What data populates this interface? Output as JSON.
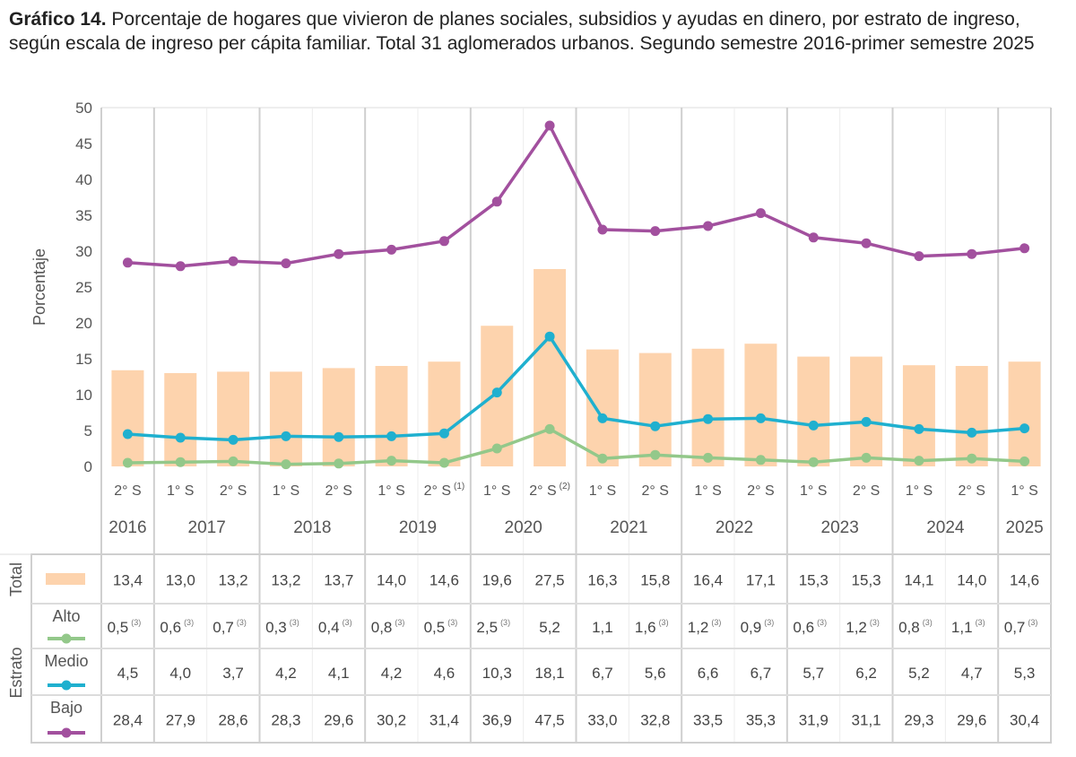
{
  "title": {
    "prefix": "Gráfico 14.",
    "text": "Porcentaje de hogares que vivieron de planes sociales, subsidios y ayudas en dinero, por estrato de ingreso, según escala de ingreso per cápita familiar. Total 31 aglomerados urbanos. Segundo semestre 2016-primer semestre 2025"
  },
  "chart_data": {
    "type": "bar+line",
    "ylabel": "Porcentaje",
    "ylim": [
      0,
      50
    ],
    "yticks": [
      "0",
      "5",
      "10",
      "15",
      "20",
      "25",
      "30",
      "35",
      "40",
      "45",
      "50"
    ],
    "grid": true,
    "semesters": [
      "2° S",
      "1° S",
      "2° S",
      "1° S",
      "2° S",
      "1° S",
      "2° S",
      "1° S",
      "2° S",
      "1° S",
      "2° S",
      "1° S",
      "2° S",
      "1° S",
      "2° S",
      "1° S",
      "2° S",
      "1° S"
    ],
    "semester_notes": [
      "",
      "",
      "",
      "",
      "",
      "",
      "(1)",
      "",
      "(2)",
      "",
      "",
      "",
      "",
      "",
      "",
      "",
      "",
      ""
    ],
    "years": [
      {
        "label": "2016",
        "span": 1
      },
      {
        "label": "2017",
        "span": 2
      },
      {
        "label": "2018",
        "span": 2
      },
      {
        "label": "2019",
        "span": 2
      },
      {
        "label": "2020",
        "span": 2
      },
      {
        "label": "2021",
        "span": 2
      },
      {
        "label": "2022",
        "span": 2
      },
      {
        "label": "2023",
        "span": 2
      },
      {
        "label": "2024",
        "span": 2
      },
      {
        "label": "2025",
        "span": 1
      }
    ],
    "table_group_labels": {
      "total": "Total",
      "estrato": "Estrato"
    },
    "series": [
      {
        "key": "total",
        "name": "Total",
        "kind": "bar",
        "color": "#fdd3ad",
        "values": [
          13.4,
          13.0,
          13.2,
          13.2,
          13.7,
          14.0,
          14.6,
          19.6,
          27.5,
          16.3,
          15.8,
          16.4,
          17.1,
          15.3,
          15.3,
          14.1,
          14.0,
          14.6
        ],
        "labels": [
          "13,4",
          "13,0",
          "13,2",
          "13,2",
          "13,7",
          "14,0",
          "14,6",
          "19,6",
          "27,5",
          "16,3",
          "15,8",
          "16,4",
          "17,1",
          "15,3",
          "15,3",
          "14,1",
          "14,0",
          "14,6"
        ],
        "notes": [
          "",
          "",
          "",
          "",
          "",
          "",
          "",
          "",
          "",
          "",
          "",
          "",
          "",
          "",
          "",
          "",
          "",
          ""
        ]
      },
      {
        "key": "alto",
        "name": "Alto",
        "kind": "line",
        "color": "#93c88a",
        "values": [
          0.5,
          0.6,
          0.7,
          0.3,
          0.4,
          0.8,
          0.5,
          2.5,
          5.2,
          1.1,
          1.6,
          1.2,
          0.9,
          0.6,
          1.2,
          0.8,
          1.1,
          0.7
        ],
        "labels": [
          "0,5",
          "0,6",
          "0,7",
          "0,3",
          "0,4",
          "0,8",
          "0,5",
          "2,5",
          "5,2",
          "1,1",
          "1,6",
          "1,2",
          "0,9",
          "0,6",
          "1,2",
          "0,8",
          "1,1",
          "0,7"
        ],
        "notes": [
          "(3)",
          "(3)",
          "(3)",
          "(3)",
          "(3)",
          "(3)",
          "(3)",
          "(3)",
          "",
          "",
          "(3)",
          "(3)",
          "(3)",
          "(3)",
          "(3)",
          "(3)",
          "(3)",
          "(3)"
        ]
      },
      {
        "key": "medio",
        "name": "Medio",
        "kind": "line",
        "color": "#1fb0cf",
        "values": [
          4.5,
          4.0,
          3.7,
          4.2,
          4.1,
          4.2,
          4.6,
          10.3,
          18.1,
          6.7,
          5.6,
          6.6,
          6.7,
          5.7,
          6.2,
          5.2,
          4.7,
          5.3
        ],
        "labels": [
          "4,5",
          "4,0",
          "3,7",
          "4,2",
          "4,1",
          "4,2",
          "4,6",
          "10,3",
          "18,1",
          "6,7",
          "5,6",
          "6,6",
          "6,7",
          "5,7",
          "6,2",
          "5,2",
          "4,7",
          "5,3"
        ],
        "notes": [
          "",
          "",
          "",
          "",
          "",
          "",
          "",
          "",
          "",
          "",
          "",
          "",
          "",
          "",
          "",
          "",
          "",
          ""
        ]
      },
      {
        "key": "bajo",
        "name": "Bajo",
        "kind": "line",
        "color": "#a2509e",
        "values": [
          28.4,
          27.9,
          28.6,
          28.3,
          29.6,
          30.2,
          31.4,
          36.9,
          47.5,
          33.0,
          32.8,
          33.5,
          35.3,
          31.9,
          31.1,
          29.3,
          29.6,
          30.4
        ],
        "labels": [
          "28,4",
          "27,9",
          "28,6",
          "28,3",
          "29,6",
          "30,2",
          "31,4",
          "36,9",
          "47,5",
          "33,0",
          "32,8",
          "33,5",
          "35,3",
          "31,9",
          "31,1",
          "29,3",
          "29,6",
          "30,4"
        ],
        "notes": [
          "",
          "",
          "",
          "",
          "",
          "",
          "",
          "",
          "",
          "",
          "",
          "",
          "",
          "",
          "",
          "",
          "",
          ""
        ]
      }
    ]
  }
}
